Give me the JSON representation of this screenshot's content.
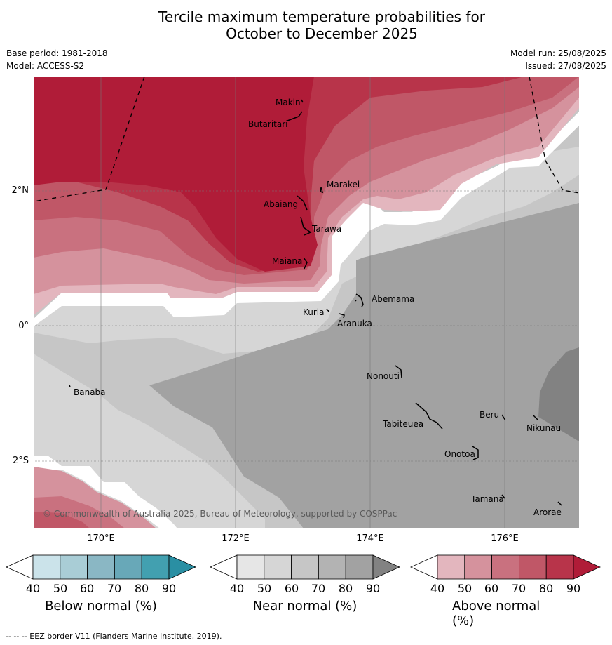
{
  "title_line1": "Tercile maximum temperature probabilities for",
  "title_line2": "October to December 2025",
  "base_period": "Base period: 1981-2018",
  "model": "Model: ACCESS-S2",
  "model_run": "Model run: 25/08/2025",
  "issued": "Issued: 27/08/2025",
  "lat_labels": [
    "2°N",
    "0°",
    "2°S"
  ],
  "lon_labels": [
    "170°E",
    "172°E",
    "174°E",
    "176°E"
  ],
  "places": [
    "Makin",
    "Butaritari",
    "Marakei",
    "Abaiang",
    "Tarawa",
    "Maiana",
    "Abemama",
    "Kuria",
    "Aranuka",
    "Nonouti",
    "Banaba",
    "Beru",
    "Nikunau",
    "Tabiteuea",
    "Onotoa",
    "Tamana",
    "Arorae"
  ],
  "copyright": "© Commonwealth of Australia 2025, Bureau of Meteorology, supported by COSPPac",
  "colorbars": [
    {
      "label": "Below normal (%)",
      "ticks": [
        "40",
        "50",
        "60",
        "70",
        "80",
        "90"
      ],
      "colors": [
        "#ffffff",
        "#cbe3ea",
        "#a9cdd6",
        "#8ab7c4",
        "#68a8b8",
        "#42a0b0",
        "#2a8fa3"
      ]
    },
    {
      "label": "Near normal (%)",
      "ticks": [
        "40",
        "50",
        "60",
        "70",
        "80",
        "90"
      ],
      "colors": [
        "#ffffff",
        "#e6e6e6",
        "#d6d6d6",
        "#c6c6c6",
        "#b3b3b3",
        "#a2a2a2",
        "#828282"
      ]
    },
    {
      "label": "Above normal (%)",
      "ticks": [
        "40",
        "50",
        "60",
        "70",
        "80",
        "90"
      ],
      "colors": [
        "#ffffff",
        "#e3b6be",
        "#d5929d",
        "#c9717f",
        "#c05767",
        "#b8344a",
        "#b01c38"
      ]
    }
  ],
  "footer": "-- -- -- EEZ border V11 (Flanders Marine Institute, 2019)."
}
